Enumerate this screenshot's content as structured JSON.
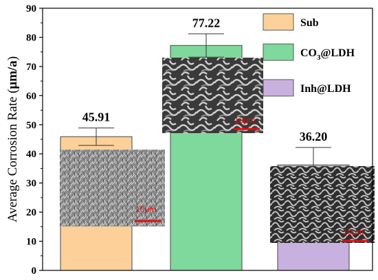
{
  "chart_data": {
    "type": "bar",
    "categories": [
      "Sub",
      "CO3@LDH",
      "Inh@LDH"
    ],
    "values": [
      45.91,
      77.22,
      36.2
    ],
    "errors": [
      3.0,
      4.0,
      6.0
    ],
    "data_labels": [
      "45.91",
      "77.22",
      "36.20"
    ],
    "colors": [
      "#fdd09a",
      "#7fd89c",
      "#c9b1df"
    ],
    "ylabel_prefix": "Average Corrosion Rate (",
    "ylabel_unit": "μm/a",
    "ylabel_suffix": ")",
    "ylim": [
      0,
      90
    ],
    "yticks": [
      0,
      10,
      20,
      30,
      40,
      50,
      60,
      70,
      80,
      90
    ],
    "legend": {
      "position": "top-right",
      "entries": [
        {
          "label": "Sub",
          "color": "#fdd09a"
        },
        {
          "label_main": "CO",
          "label_sub": "3",
          "label_tail": "@LDH",
          "color": "#7fd89c"
        },
        {
          "label": "Inh@LDH",
          "color": "#c9b1df"
        }
      ]
    },
    "insets": [
      {
        "scale_text": "10μm",
        "icon": "sem-micrograph-icon"
      },
      {
        "scale_text": "10μm",
        "icon": "sem-micrograph-icon"
      },
      {
        "scale_text": "10μm",
        "icon": "sem-micrograph-icon"
      }
    ]
  }
}
